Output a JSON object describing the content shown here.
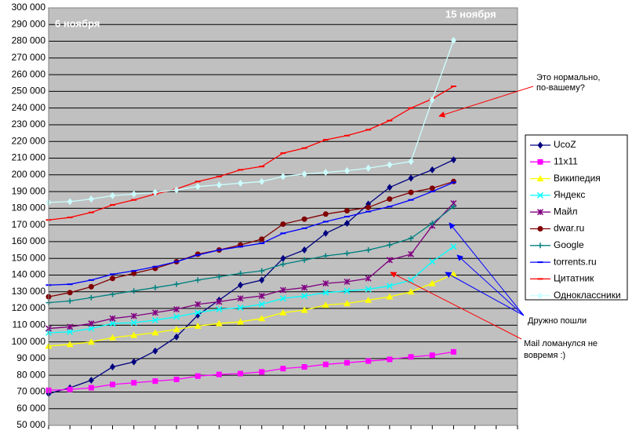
{
  "chart_data": {
    "type": "line",
    "categories": [
      null,
      null,
      null,
      null,
      null,
      null,
      null,
      null,
      null,
      null,
      null,
      null,
      null,
      null,
      null,
      null,
      null,
      null,
      null,
      null,
      null,
      null,
      null
    ],
    "ylim": [
      50000,
      300000
    ],
    "yticks": [
      {
        "value": 50000,
        "label": "50 000"
      },
      {
        "value": 60000,
        "label": "60 000"
      },
      {
        "value": 70000,
        "label": "70 000"
      },
      {
        "value": 80000,
        "label": "80 000"
      },
      {
        "value": 90000,
        "label": "90 000"
      },
      {
        "value": 100000,
        "label": "100 000"
      },
      {
        "value": 110000,
        "label": "110 000"
      },
      {
        "value": 120000,
        "label": "120 000"
      },
      {
        "value": 130000,
        "label": "130 000"
      },
      {
        "value": 140000,
        "label": "140 000"
      },
      {
        "value": 150000,
        "label": "150 000"
      },
      {
        "value": 160000,
        "label": "160 000"
      },
      {
        "value": 170000,
        "label": "170 000"
      },
      {
        "value": 180000,
        "label": "180 000"
      },
      {
        "value": 190000,
        "label": "190 000"
      },
      {
        "value": 200000,
        "label": "200 000"
      },
      {
        "value": 210000,
        "label": "210 000"
      },
      {
        "value": 220000,
        "label": "220 000"
      },
      {
        "value": 230000,
        "label": "230 000"
      },
      {
        "value": 240000,
        "label": "240 000"
      },
      {
        "value": 250000,
        "label": "250 000"
      },
      {
        "value": 260000,
        "label": "260 000"
      },
      {
        "value": 270000,
        "label": "270 000"
      },
      {
        "value": 280000,
        "label": "280 000"
      },
      {
        "value": 290000,
        "label": "290 000"
      },
      {
        "value": 300000,
        "label": "300 000"
      }
    ],
    "grid": true,
    "legend": "right",
    "series": [
      {
        "name": "UcoZ",
        "color": "#000080",
        "marker": "diamond",
        "values": [
          69000,
          72500,
          77000,
          85000,
          88000,
          94500,
          103000,
          116000,
          125000,
          134000,
          137000,
          150000,
          155000,
          165000,
          171000,
          182500,
          192500,
          198000,
          203000,
          209000,
          null,
          null,
          null
        ]
      },
      {
        "name": "11x11",
        "color": "#ff00ff",
        "marker": "square",
        "values": [
          71000,
          71500,
          72500,
          74500,
          75500,
          76500,
          77500,
          79500,
          80500,
          81000,
          82000,
          84000,
          85000,
          86500,
          87500,
          88500,
          89500,
          91000,
          92000,
          94000,
          null,
          null,
          null
        ]
      },
      {
        "name": "Википедия",
        "color": "#ffff00",
        "marker": "triangle",
        "values": [
          97500,
          98500,
          100000,
          102500,
          104000,
          105500,
          107500,
          109500,
          111000,
          112000,
          114000,
          117500,
          119000,
          122000,
          123000,
          125000,
          127000,
          130000,
          135000,
          140500,
          null,
          null,
          null
        ]
      },
      {
        "name": "Яндекс",
        "color": "#00ffff",
        "marker": "x",
        "values": [
          105500,
          106000,
          108000,
          111000,
          111500,
          113000,
          115000,
          117500,
          119500,
          120500,
          122500,
          126000,
          127500,
          129500,
          130500,
          131500,
          133500,
          137000,
          148000,
          157000,
          null,
          null,
          null
        ]
      },
      {
        "name": "Майл",
        "color": "#800080",
        "marker": "star",
        "values": [
          108000,
          109000,
          111000,
          114000,
          115500,
          117500,
          119500,
          122500,
          124000,
          126000,
          127500,
          131000,
          132500,
          135000,
          136000,
          138000,
          149000,
          152500,
          169500,
          183000,
          null,
          null,
          null
        ]
      },
      {
        "name": "dwar.ru",
        "color": "#800000",
        "marker": "circle",
        "values": [
          127000,
          129500,
          133000,
          138000,
          141000,
          144000,
          148000,
          152500,
          155000,
          158000,
          161500,
          170500,
          173500,
          176500,
          178500,
          180500,
          185500,
          189500,
          192000,
          196000,
          null,
          null,
          null
        ]
      },
      {
        "name": "Google",
        "color": "#008080",
        "marker": "plus",
        "values": [
          123500,
          124500,
          126500,
          128500,
          130500,
          132500,
          134500,
          137000,
          139000,
          141000,
          142500,
          146500,
          149000,
          151500,
          153000,
          155000,
          158000,
          162000,
          171000,
          181000,
          null,
          null,
          null
        ]
      },
      {
        "name": "torrents.ru",
        "color": "#0000ff",
        "marker": "dash",
        "values": [
          134000,
          134500,
          137000,
          140500,
          142500,
          145000,
          148000,
          152000,
          155000,
          157000,
          159000,
          165000,
          168000,
          172000,
          175000,
          178000,
          181000,
          185000,
          190000,
          195500,
          null,
          null,
          null
        ]
      },
      {
        "name": "Цитатник",
        "color": "#ff0000",
        "marker": "dash",
        "values": [
          173000,
          174500,
          177500,
          182000,
          185000,
          188500,
          191500,
          196000,
          199000,
          203000,
          205000,
          213000,
          216000,
          221000,
          223500,
          227000,
          232500,
          240000,
          245500,
          253000,
          null,
          null,
          null
        ]
      },
      {
        "name": "Одноклассники",
        "color": "#ccffff",
        "marker": "diamond",
        "values": [
          183500,
          184000,
          185500,
          187500,
          188500,
          189500,
          191000,
          193000,
          194000,
          195000,
          196000,
          199000,
          200500,
          201500,
          202500,
          204000,
          206000,
          208000,
          245000,
          280500,
          null,
          null,
          null
        ]
      }
    ],
    "annotations": [
      {
        "lines": [
          "6 ноября"
        ]
      },
      {
        "lines": [
          "15 ноября"
        ]
      },
      {
        "lines": [
          "Это нормально,",
          "по-вашему?"
        ]
      },
      {
        "lines": [
          "Дружно пошли"
        ]
      },
      {
        "lines": [
          "Mail ломанулся не",
          "вовремя :)"
        ]
      }
    ]
  }
}
